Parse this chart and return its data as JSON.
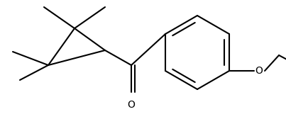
{
  "background_color": "#ffffff",
  "line_color": "#000000",
  "line_width": 1.5,
  "figsize": [
    4.03,
    1.68
  ],
  "dpi": 100,
  "font_size": 10
}
